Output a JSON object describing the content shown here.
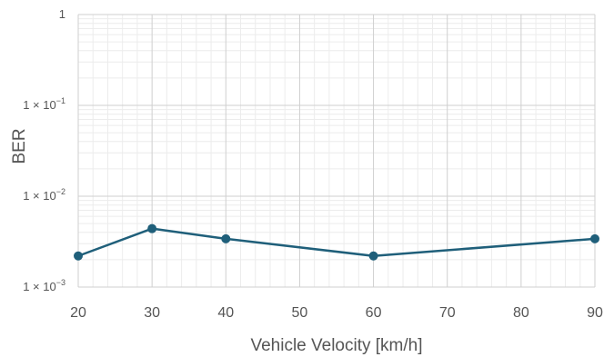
{
  "chart_data": {
    "type": "line",
    "title": "",
    "xlabel": "Vehicle Velocity [km/h]",
    "ylabel": "BER",
    "x_scale": "linear",
    "y_scale": "log",
    "xlim": [
      20,
      90
    ],
    "ylim": [
      0.001,
      1
    ],
    "x_ticks": [
      20,
      30,
      40,
      50,
      60,
      70,
      80,
      90
    ],
    "x_tick_labels": [
      "20",
      "30",
      "40",
      "50",
      "60",
      "70",
      "80",
      "90"
    ],
    "y_ticks": [
      {
        "value": 1,
        "base": "1",
        "exp": ""
      },
      {
        "value": 0.1,
        "base": "1 × 10",
        "exp": "−1"
      },
      {
        "value": 0.01,
        "base": "1 × 10",
        "exp": "−2"
      },
      {
        "value": 0.001,
        "base": "1 × 10",
        "exp": "−3"
      }
    ],
    "grid": true,
    "series": [
      {
        "color": "#1f5f7a",
        "x": [
          20,
          30,
          40,
          60,
          90
        ],
        "y": [
          0.0022,
          0.0044,
          0.0034,
          0.0022,
          0.0034
        ]
      }
    ]
  }
}
